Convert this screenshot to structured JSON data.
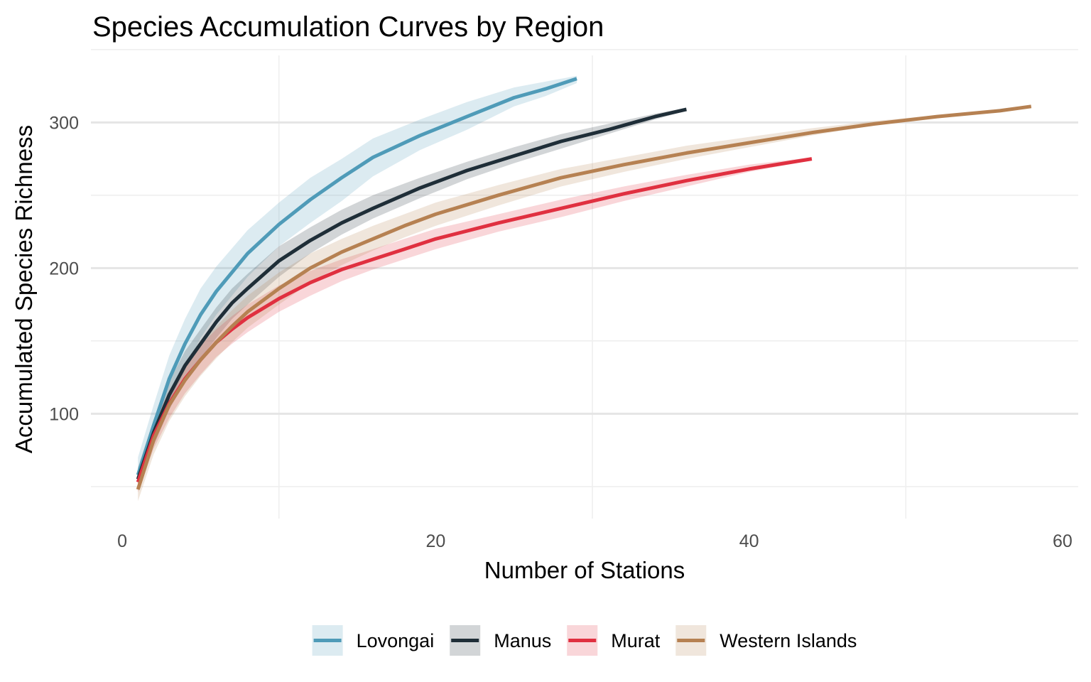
{
  "chart_data": {
    "type": "line",
    "title": "Species Accumulation Curves by Region",
    "xlabel": "Number of Stations",
    "ylabel": "Accumulated Species Richness",
    "xlim": [
      -2,
      61
    ],
    "ylim": [
      28,
      346
    ],
    "x_ticks": [
      0,
      20,
      40,
      60
    ],
    "y_ticks": [
      100,
      200,
      300
    ],
    "grid": true,
    "legend_position": "bottom",
    "series": [
      {
        "name": "Lovongai",
        "color": "#4f9bb8",
        "ribbon_color": "#dbe9ef",
        "x": [
          1,
          2,
          3,
          4,
          5,
          6,
          8,
          10,
          12,
          14,
          16,
          19,
          22,
          25,
          27,
          29
        ],
        "y": [
          58,
          92,
          124,
          148,
          168,
          184,
          210,
          230,
          247,
          262,
          276,
          291,
          304,
          317,
          323,
          330
        ],
        "lower": [
          50,
          80,
          108,
          130,
          152,
          168,
          194,
          215,
          231,
          246,
          263,
          281,
          295,
          311,
          318,
          327
        ],
        "upper": [
          70,
          106,
          140,
          165,
          186,
          201,
          226,
          245,
          262,
          275,
          289,
          302,
          314,
          324,
          328,
          332
        ]
      },
      {
        "name": "Manus",
        "color": "#1f2e38",
        "ribbon_color": "#cfd4d6",
        "x": [
          1,
          2,
          3,
          4,
          5,
          6,
          7,
          8,
          10,
          12,
          14,
          16,
          19,
          22,
          25,
          28,
          31,
          34,
          36
        ],
        "y": [
          55,
          87,
          113,
          133,
          148,
          163,
          176,
          186,
          205,
          219,
          231,
          241,
          255,
          267,
          277,
          287,
          295,
          304,
          309
        ],
        "lower": [
          48,
          78,
          103,
          122,
          138,
          152,
          165,
          175,
          194,
          210,
          223,
          234,
          248,
          261,
          272,
          282,
          292,
          302,
          308
        ],
        "upper": [
          63,
          96,
          122,
          143,
          158,
          173,
          186,
          196,
          215,
          228,
          240,
          250,
          262,
          273,
          283,
          292,
          299,
          306,
          310
        ]
      },
      {
        "name": "Murat",
        "color": "#e03040",
        "ribbon_color": "#f6d1d5",
        "x": [
          1,
          2,
          3,
          4,
          5,
          6,
          7,
          8,
          10,
          12,
          14,
          16,
          18,
          20,
          24,
          28,
          32,
          36,
          40,
          44
        ],
        "y": [
          53,
          85,
          107,
          124,
          137,
          149,
          158,
          166,
          179,
          190,
          199,
          206,
          213,
          220,
          231,
          241,
          251,
          260,
          268,
          275
        ],
        "lower": [
          46,
          76,
          97,
          114,
          127,
          139,
          148,
          156,
          170,
          181,
          191,
          199,
          206,
          213,
          225,
          235,
          246,
          256,
          266,
          274
        ],
        "upper": [
          60,
          93,
          116,
          133,
          147,
          158,
          167,
          175,
          188,
          198,
          206,
          213,
          220,
          227,
          237,
          247,
          256,
          264,
          271,
          276
        ]
      },
      {
        "name": "Western Islands",
        "color": "#b68152",
        "ribbon_color": "#efe4d8",
        "x": [
          1,
          2,
          3,
          4,
          5,
          6,
          7,
          8,
          10,
          12,
          14,
          16,
          18,
          20,
          24,
          28,
          32,
          36,
          40,
          44,
          48,
          52,
          56,
          58
        ],
        "y": [
          48,
          82,
          106,
          123,
          137,
          149,
          160,
          170,
          186,
          200,
          211,
          220,
          229,
          237,
          250,
          262,
          271,
          279,
          286,
          293,
          299,
          304,
          308,
          311
        ],
        "lower": [
          40,
          72,
          95,
          112,
          126,
          138,
          149,
          159,
          175,
          190,
          202,
          212,
          221,
          229,
          243,
          256,
          266,
          275,
          283,
          291,
          298,
          303,
          308,
          311
        ],
        "upper": [
          56,
          91,
          116,
          134,
          148,
          160,
          171,
          181,
          197,
          210,
          220,
          229,
          237,
          245,
          257,
          268,
          276,
          284,
          290,
          296,
          301,
          305,
          309,
          311
        ]
      }
    ]
  }
}
